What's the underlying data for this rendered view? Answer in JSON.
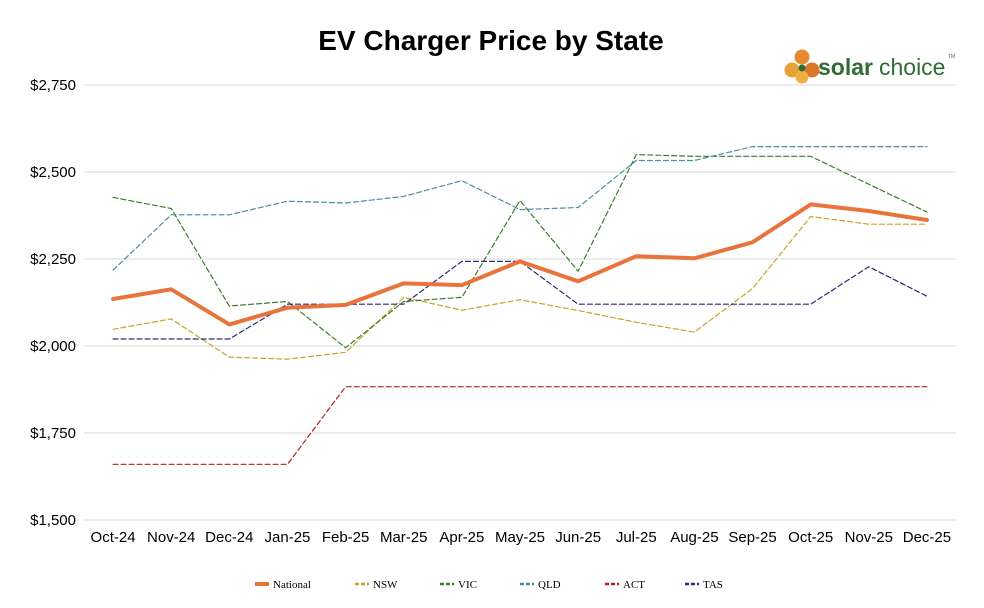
{
  "logo": {
    "word1": "solar",
    "word2": "choice",
    "tm": "TM"
  },
  "chart_data": {
    "type": "line",
    "title": "EV Charger Price by State",
    "categories": [
      "Oct-24",
      "Nov-24",
      "Dec-24",
      "Jan-25",
      "Feb-25",
      "Mar-25",
      "Apr-25",
      "May-25",
      "Jun-25",
      "Jul-25",
      "Aug-25",
      "Sep-25",
      "Oct-25",
      "Nov-25",
      "Dec-25"
    ],
    "ylim": [
      1500,
      2750
    ],
    "yticks": [
      1500,
      1750,
      2000,
      2250,
      2500,
      2750
    ],
    "ytick_labels": [
      "$1,500",
      "$1,750",
      "$2,000",
      "$2,250",
      "$2,500",
      "$2,750"
    ],
    "grid": true,
    "legend_position": "bottom",
    "series": [
      {
        "name": "National",
        "color": "#e8743b",
        "style": "solid",
        "values": [
          2135,
          2163,
          2062,
          2110,
          2118,
          2180,
          2175,
          2243,
          2186,
          2258,
          2252,
          2298,
          2407,
          2388,
          2362
        ]
      },
      {
        "name": "NSW",
        "color": "#c9a227",
        "style": "dashed",
        "values": [
          2048,
          2078,
          1968,
          1962,
          1982,
          2140,
          2103,
          2133,
          2102,
          2068,
          2040,
          2165,
          2372,
          2350,
          2350
        ]
      },
      {
        "name": "VIC",
        "color": "#3a7d2c",
        "style": "dashed",
        "values": [
          2427,
          2395,
          2115,
          2128,
          1995,
          2128,
          2140,
          2418,
          2215,
          2550,
          2545,
          2545,
          2545,
          2465,
          2385
        ]
      },
      {
        "name": "QLD",
        "color": "#4a8fa0",
        "style": "dashed",
        "values": [
          2218,
          2377,
          2377,
          2416,
          2411,
          2430,
          2475,
          2392,
          2398,
          2533,
          2533,
          2573,
          2573,
          2573,
          2573
        ]
      },
      {
        "name": "ACT",
        "color": "#b22222",
        "style": "dashed",
        "values": [
          1660,
          1660,
          1660,
          1660,
          1883,
          1883,
          1883,
          1883,
          1883,
          1883,
          1883,
          1883,
          1883,
          1883,
          1883
        ]
      },
      {
        "name": "TAS",
        "color": "#2e2a7c",
        "style": "dashed",
        "values": [
          2020,
          2020,
          2020,
          2120,
          2120,
          2120,
          2243,
          2243,
          2120,
          2120,
          2120,
          2120,
          2120,
          2228,
          2143
        ]
      }
    ]
  }
}
